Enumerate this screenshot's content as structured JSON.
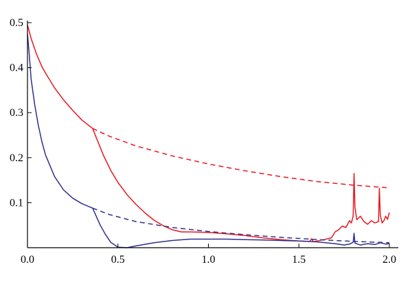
{
  "chart_data": {
    "type": "line",
    "title": "",
    "xlabel": "",
    "ylabel": "",
    "xlim": [
      0,
      2.0
    ],
    "ylim": [
      0,
      0.5
    ],
    "grid": false,
    "x_ticks": [
      {
        "value": 0.0,
        "label": "0.0"
      },
      {
        "value": 0.5,
        "label": "0.5"
      },
      {
        "value": 1.0,
        "label": "1.0"
      },
      {
        "value": 1.5,
        "label": "1.5"
      },
      {
        "value": 2.0,
        "label": "2.0"
      }
    ],
    "y_ticks": [
      {
        "value": 0.1,
        "label": "0.1"
      },
      {
        "value": 0.2,
        "label": "0.2"
      },
      {
        "value": 0.3,
        "label": "0.3"
      },
      {
        "value": 0.4,
        "label": "0.4"
      },
      {
        "value": 0.5,
        "label": "0.5"
      }
    ],
    "series": [
      {
        "color": "#e8161e",
        "style": "dashed",
        "points": [
          [
            0.36,
            0.265
          ],
          [
            0.45,
            0.248
          ],
          [
            0.6,
            0.226
          ],
          [
            0.8,
            0.204
          ],
          [
            1.0,
            0.186
          ],
          [
            1.2,
            0.171
          ],
          [
            1.4,
            0.158
          ],
          [
            1.6,
            0.147
          ],
          [
            1.8,
            0.139
          ],
          [
            2.0,
            0.133
          ]
        ]
      },
      {
        "color": "#e8161e",
        "style": "solid",
        "points": [
          [
            0.0,
            0.495
          ],
          [
            0.02,
            0.465
          ],
          [
            0.05,
            0.43
          ],
          [
            0.08,
            0.402
          ],
          [
            0.1,
            0.388
          ],
          [
            0.15,
            0.355
          ],
          [
            0.2,
            0.328
          ],
          [
            0.25,
            0.305
          ],
          [
            0.3,
            0.284
          ],
          [
            0.36,
            0.265
          ],
          [
            0.38,
            0.245
          ],
          [
            0.42,
            0.205
          ],
          [
            0.46,
            0.172
          ],
          [
            0.5,
            0.145
          ],
          [
            0.55,
            0.118
          ],
          [
            0.6,
            0.096
          ],
          [
            0.65,
            0.077
          ],
          [
            0.7,
            0.061
          ],
          [
            0.75,
            0.049
          ],
          [
            0.8,
            0.04
          ],
          [
            0.85,
            0.035
          ],
          [
            0.9,
            0.035
          ],
          [
            1.0,
            0.034
          ],
          [
            1.1,
            0.031
          ],
          [
            1.2,
            0.027
          ],
          [
            1.3,
            0.022
          ],
          [
            1.4,
            0.018
          ],
          [
            1.5,
            0.015
          ],
          [
            1.56,
            0.014
          ],
          [
            1.57,
            0.02
          ],
          [
            1.58,
            0.013
          ],
          [
            1.6,
            0.015
          ],
          [
            1.64,
            0.018
          ],
          [
            1.68,
            0.022
          ],
          [
            1.7,
            0.035
          ],
          [
            1.72,
            0.04
          ],
          [
            1.74,
            0.048
          ],
          [
            1.76,
            0.045
          ],
          [
            1.78,
            0.06
          ],
          [
            1.79,
            0.055
          ],
          [
            1.8,
            0.07
          ],
          [
            1.805,
            0.165
          ],
          [
            1.81,
            0.09
          ],
          [
            1.82,
            0.062
          ],
          [
            1.84,
            0.07
          ],
          [
            1.86,
            0.058
          ],
          [
            1.88,
            0.052
          ],
          [
            1.9,
            0.06
          ],
          [
            1.92,
            0.055
          ],
          [
            1.94,
            0.058
          ],
          [
            1.945,
            0.132
          ],
          [
            1.95,
            0.072
          ],
          [
            1.96,
            0.055
          ],
          [
            1.97,
            0.06
          ],
          [
            1.98,
            0.07
          ],
          [
            1.99,
            0.063
          ],
          [
            2.0,
            0.078
          ]
        ]
      },
      {
        "color": "#2e2e8c",
        "style": "dashed",
        "points": [
          [
            0.36,
            0.088
          ],
          [
            0.45,
            0.074
          ],
          [
            0.6,
            0.058
          ],
          [
            0.8,
            0.045
          ],
          [
            1.0,
            0.036
          ],
          [
            1.2,
            0.029
          ],
          [
            1.4,
            0.023
          ],
          [
            1.6,
            0.018
          ],
          [
            1.8,
            0.014
          ],
          [
            2.0,
            0.011
          ]
        ]
      },
      {
        "color": "#2e2e8c",
        "style": "solid",
        "points": [
          [
            0.0,
            0.475
          ],
          [
            0.01,
            0.43
          ],
          [
            0.02,
            0.375
          ],
          [
            0.04,
            0.318
          ],
          [
            0.06,
            0.272
          ],
          [
            0.08,
            0.235
          ],
          [
            0.1,
            0.206
          ],
          [
            0.15,
            0.158
          ],
          [
            0.2,
            0.128
          ],
          [
            0.25,
            0.11
          ],
          [
            0.3,
            0.098
          ],
          [
            0.36,
            0.088
          ],
          [
            0.38,
            0.07
          ],
          [
            0.4,
            0.052
          ],
          [
            0.43,
            0.03
          ],
          [
            0.46,
            0.012
          ],
          [
            0.5,
            0.001
          ],
          [
            0.55,
            0.0
          ],
          [
            0.6,
            0.004
          ],
          [
            0.7,
            0.011
          ],
          [
            0.8,
            0.016
          ],
          [
            0.9,
            0.019
          ],
          [
            1.0,
            0.019
          ],
          [
            1.1,
            0.019
          ],
          [
            1.2,
            0.018
          ],
          [
            1.3,
            0.017
          ],
          [
            1.4,
            0.016
          ],
          [
            1.5,
            0.015
          ],
          [
            1.6,
            0.013
          ],
          [
            1.7,
            0.009
          ],
          [
            1.75,
            0.006
          ],
          [
            1.78,
            0.008
          ],
          [
            1.8,
            0.012
          ],
          [
            1.805,
            0.032
          ],
          [
            1.81,
            0.01
          ],
          [
            1.84,
            0.006
          ],
          [
            1.88,
            0.009
          ],
          [
            1.92,
            0.007
          ],
          [
            1.95,
            0.011
          ],
          [
            1.98,
            0.008
          ],
          [
            2.0,
            0.009
          ]
        ]
      }
    ]
  }
}
